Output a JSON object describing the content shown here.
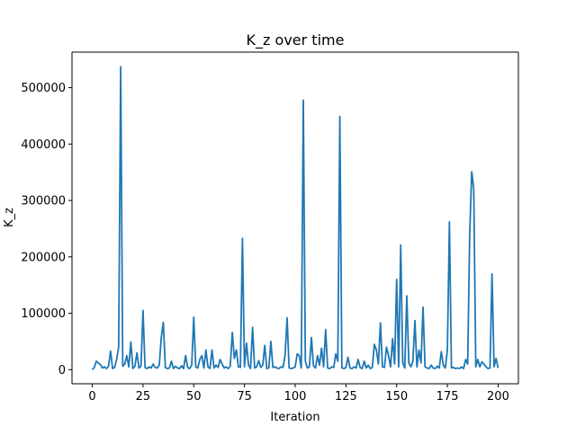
{
  "chart_data": {
    "type": "line",
    "title": "K_z over time",
    "xlabel": "Iteration",
    "ylabel": "K_z",
    "xlim": [
      -10,
      210
    ],
    "ylim": [
      -25000,
      563000
    ],
    "x_ticks": [
      0,
      25,
      50,
      75,
      100,
      125,
      150,
      175,
      200
    ],
    "x_tick_labels": [
      "0",
      "25",
      "50",
      "75",
      "100",
      "125",
      "150",
      "175",
      "200"
    ],
    "y_ticks": [
      0,
      100000,
      200000,
      300000,
      400000,
      500000
    ],
    "y_tick_labels": [
      "0",
      "100000",
      "200000",
      "300000",
      "400000",
      "500000"
    ],
    "grid": false,
    "legend": "none",
    "color": "#1f77b4",
    "series": [
      {
        "values": [
          0,
          4000,
          15000,
          12000,
          9000,
          3000,
          5000,
          2000,
          6000,
          33000,
          2000,
          4000,
          18000,
          40000,
          537000,
          6000,
          10000,
          25000,
          5000,
          49000,
          2000,
          6000,
          30000,
          3000,
          6000,
          105000,
          4000,
          2000,
          5000,
          3000,
          10000,
          4000,
          3000,
          8000,
          57000,
          84000,
          4000,
          2000,
          3000,
          15000,
          2000,
          6000,
          3000,
          2000,
          7000,
          2000,
          25000,
          4000,
          2000,
          8000,
          93000,
          5000,
          3000,
          18000,
          25000,
          3000,
          35000,
          5000,
          2000,
          35000,
          3000,
          8000,
          4000,
          18000,
          10000,
          3000,
          5000,
          2000,
          6000,
          66000,
          20000,
          35000,
          5000,
          4000,
          233000,
          5000,
          47000,
          8000,
          2000,
          75000,
          3000,
          5000,
          16000,
          4000,
          8000,
          43000,
          2000,
          3000,
          50000,
          4000,
          5000,
          3000,
          2000,
          5000,
          4000,
          25000,
          92000,
          3000,
          2000,
          3000,
          5000,
          28000,
          25000,
          3000,
          478000,
          15000,
          3000,
          5000,
          57000,
          7000,
          3000,
          25000,
          8000,
          38000,
          5000,
          71000,
          3000,
          2000,
          5000,
          4000,
          28000,
          15000,
          449000,
          3000,
          2000,
          4000,
          22000,
          3000,
          2000,
          5000,
          3000,
          18000,
          4000,
          2000,
          15000,
          3000,
          8000,
          2000,
          4000,
          45000,
          35000,
          10000,
          83000,
          5000,
          4000,
          40000,
          25000,
          5000,
          55000,
          10000,
          160000,
          5000,
          221000,
          12000,
          3000,
          131000,
          12000,
          5000,
          15000,
          87000,
          5000,
          35000,
          12000,
          111000,
          5000,
          3000,
          2000,
          8000,
          3000,
          2000,
          6000,
          3000,
          32000,
          8000,
          3000,
          35000,
          262000,
          3000,
          4000,
          2000,
          3000,
          2000,
          5000,
          2000,
          18000,
          10000,
          240000,
          351000,
          320000,
          5000,
          18000,
          5000,
          14000,
          10000,
          5000,
          2000,
          3000,
          170000,
          5000,
          20000,
          3000
        ]
      }
    ]
  }
}
